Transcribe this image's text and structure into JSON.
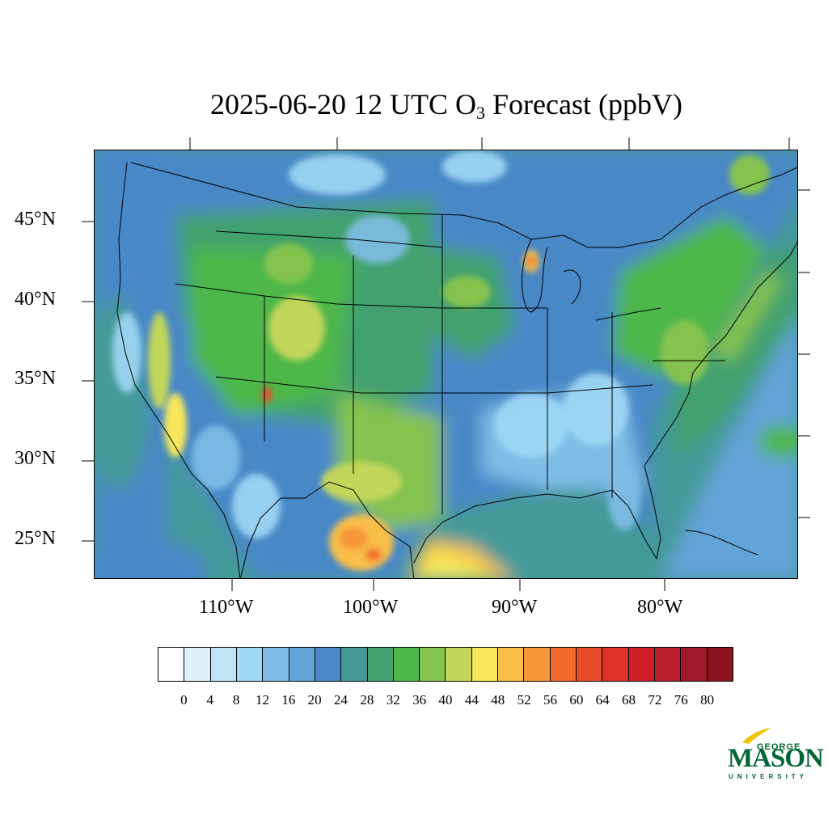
{
  "title": {
    "prefix": "2025-06-20 12 UTC O",
    "subscript": "3",
    "suffix": " Forecast (ppbV)"
  },
  "axes": {
    "lat_labels": [
      "45°N",
      "40°N",
      "35°N",
      "30°N",
      "25°N"
    ],
    "lon_labels": [
      "110°W",
      "100°W",
      "90°W",
      "80°W"
    ]
  },
  "colorbar": {
    "colors": [
      "#ffffff",
      "#dff0fa",
      "#bfe4f7",
      "#a0d8f5",
      "#80bde6",
      "#63a3d8",
      "#4a88c7",
      "#449a9a",
      "#42a16e",
      "#4eb749",
      "#85c34f",
      "#c2d65a",
      "#f6e85a",
      "#f8bf49",
      "#f69638",
      "#f26a2c",
      "#e94c2b",
      "#de322a",
      "#d11f2a",
      "#b9202b",
      "#a0192a",
      "#8b1420"
    ],
    "tick_labels": [
      "0",
      "4",
      "8",
      "12",
      "16",
      "20",
      "24",
      "28",
      "32",
      "36",
      "40",
      "44",
      "48",
      "52",
      "56",
      "60",
      "64",
      "68",
      "72",
      "76",
      "80"
    ]
  },
  "logo": {
    "george": "GEORGE",
    "mason": "MASON",
    "university": "UNIVERSITY"
  }
}
